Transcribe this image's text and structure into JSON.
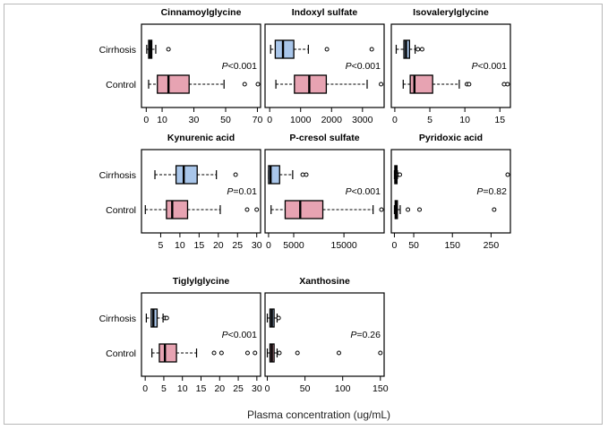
{
  "chart_data": {
    "type": "boxplot",
    "xlabel": "Plasma concentration (ug/mL)",
    "groups": [
      "Cirrhosis",
      "Control"
    ],
    "colors": {
      "Cirrhosis": "#a9c6ea",
      "Control": "#e7a3b2"
    },
    "panels": [
      {
        "title": "Cinnamoylglycine",
        "xlim": [
          -3,
          72
        ],
        "ticks": [
          0,
          10,
          30,
          50,
          70
        ],
        "pvalue": {
          "label": "P",
          "text": "<0.001"
        },
        "boxes": {
          "Cirrhosis": {
            "whisker_low": 0.3,
            "q1": 1.5,
            "median": 2.5,
            "q3": 3.5,
            "whisker_high": 6,
            "outliers": [
              14
            ]
          },
          "Control": {
            "whisker_low": 1.5,
            "q1": 7,
            "median": 14,
            "q3": 27,
            "whisker_high": 49,
            "outliers": [
              62,
              71
            ]
          }
        }
      },
      {
        "title": "Indoxyl sulfate",
        "xlim": [
          -150,
          3700
        ],
        "ticks": [
          0,
          1000,
          2000,
          3000
        ],
        "pvalue": {
          "label": "P",
          "text": "<0.001"
        },
        "boxes": {
          "Cirrhosis": {
            "whisker_low": 30,
            "q1": 180,
            "median": 430,
            "q3": 780,
            "whisker_high": 1250,
            "outliers": [
              1850,
              3300
            ]
          },
          "Control": {
            "whisker_low": 200,
            "q1": 800,
            "median": 1280,
            "q3": 1830,
            "whisker_high": 3150,
            "outliers": [
              3600
            ]
          }
        }
      },
      {
        "title": "Isovalerylglycine",
        "xlim": [
          -0.5,
          16.5
        ],
        "ticks": [
          0,
          5,
          10,
          15
        ],
        "pvalue": {
          "label": "P",
          "text": "<0.001"
        },
        "boxes": {
          "Cirrhosis": {
            "whisker_low": 0.2,
            "q1": 1.3,
            "median": 1.6,
            "q3": 2.1,
            "whisker_high": 2.9,
            "outliers": [
              3.3,
              3.9
            ]
          },
          "Control": {
            "whisker_low": 1.2,
            "q1": 2.2,
            "median": 2.8,
            "q3": 5.4,
            "whisker_high": 9.2,
            "outliers": [
              10.3,
              10.6,
              15.6,
              16.1
            ]
          }
        }
      },
      {
        "title": "Kynurenic acid",
        "xlim": [
          0,
          31
        ],
        "ticks": [
          5,
          10,
          15,
          20,
          25,
          30
        ],
        "pvalue": {
          "label": "P",
          "text": "=0.01"
        },
        "boxes": {
          "Cirrhosis": {
            "whisker_low": 3.5,
            "q1": 9,
            "median": 11,
            "q3": 14.5,
            "whisker_high": 19.5,
            "outliers": [
              24.5
            ]
          },
          "Control": {
            "whisker_low": 1,
            "q1": 6.5,
            "median": 8,
            "q3": 12,
            "whisker_high": 20.5,
            "outliers": [
              27.5,
              30
            ]
          }
        }
      },
      {
        "title": "P-cresol sulfate",
        "xlim": [
          -700,
          23000
        ],
        "ticks": [
          0,
          5000,
          15000
        ],
        "pvalue": {
          "label": "P",
          "text": "<0.001"
        },
        "boxes": {
          "Cirrhosis": {
            "whisker_low": 0,
            "q1": 0,
            "median": 400,
            "q3": 2200,
            "whisker_high": 4800,
            "outliers": [
              6800,
              7500
            ]
          },
          "Control": {
            "whisker_low": 500,
            "q1": 3300,
            "median": 6300,
            "q3": 10800,
            "whisker_high": 20800,
            "outliers": [
              22700
            ]
          }
        }
      },
      {
        "title": "Pyridoxic acid",
        "xlim": [
          -8,
          300
        ],
        "ticks": [
          0,
          50,
          150,
          250
        ],
        "pvalue": {
          "label": "P",
          "text": "=0.82"
        },
        "boxes": {
          "Cirrhosis": {
            "whisker_low": 0,
            "q1": 1,
            "median": 3,
            "q3": 5,
            "whisker_high": 8,
            "outliers": [
              11,
              14,
              293
            ]
          },
          "Control": {
            "whisker_low": 0,
            "q1": 2,
            "median": 4,
            "q3": 7,
            "whisker_high": 15,
            "outliers": [
              35,
              65,
              258
            ]
          }
        }
      },
      {
        "title": "Tiglylglycine",
        "xlim": [
          -1,
          31
        ],
        "ticks": [
          0,
          5,
          10,
          15,
          20,
          25,
          30
        ],
        "pvalue": {
          "label": "P",
          "text": "<0.001"
        },
        "boxes": {
          "Cirrhosis": {
            "whisker_low": 0.3,
            "q1": 1.6,
            "median": 2.2,
            "q3": 3.2,
            "whisker_high": 4.8,
            "outliers": [
              5.3,
              5.8
            ]
          },
          "Control": {
            "whisker_low": 1.8,
            "q1": 3.8,
            "median": 5.3,
            "q3": 8.4,
            "whisker_high": 13.8,
            "outliers": [
              18.5,
              20.5,
              27.5,
              29.5
            ]
          }
        }
      },
      {
        "title": "Xanthosine",
        "xlim": [
          -3,
          155
        ],
        "ticks": [
          0,
          50,
          100,
          150
        ],
        "pvalue": {
          "label": "P",
          "text": "=0.26"
        },
        "boxes": {
          "Cirrhosis": {
            "whisker_low": 0,
            "q1": 3.5,
            "median": 6,
            "q3": 9,
            "whisker_high": 13,
            "outliers": [
              15
            ]
          },
          "Control": {
            "whisker_low": 0,
            "q1": 3.5,
            "median": 6,
            "q3": 9,
            "whisker_high": 13,
            "outliers": [
              16,
              40,
              95,
              150
            ]
          }
        }
      }
    ]
  }
}
